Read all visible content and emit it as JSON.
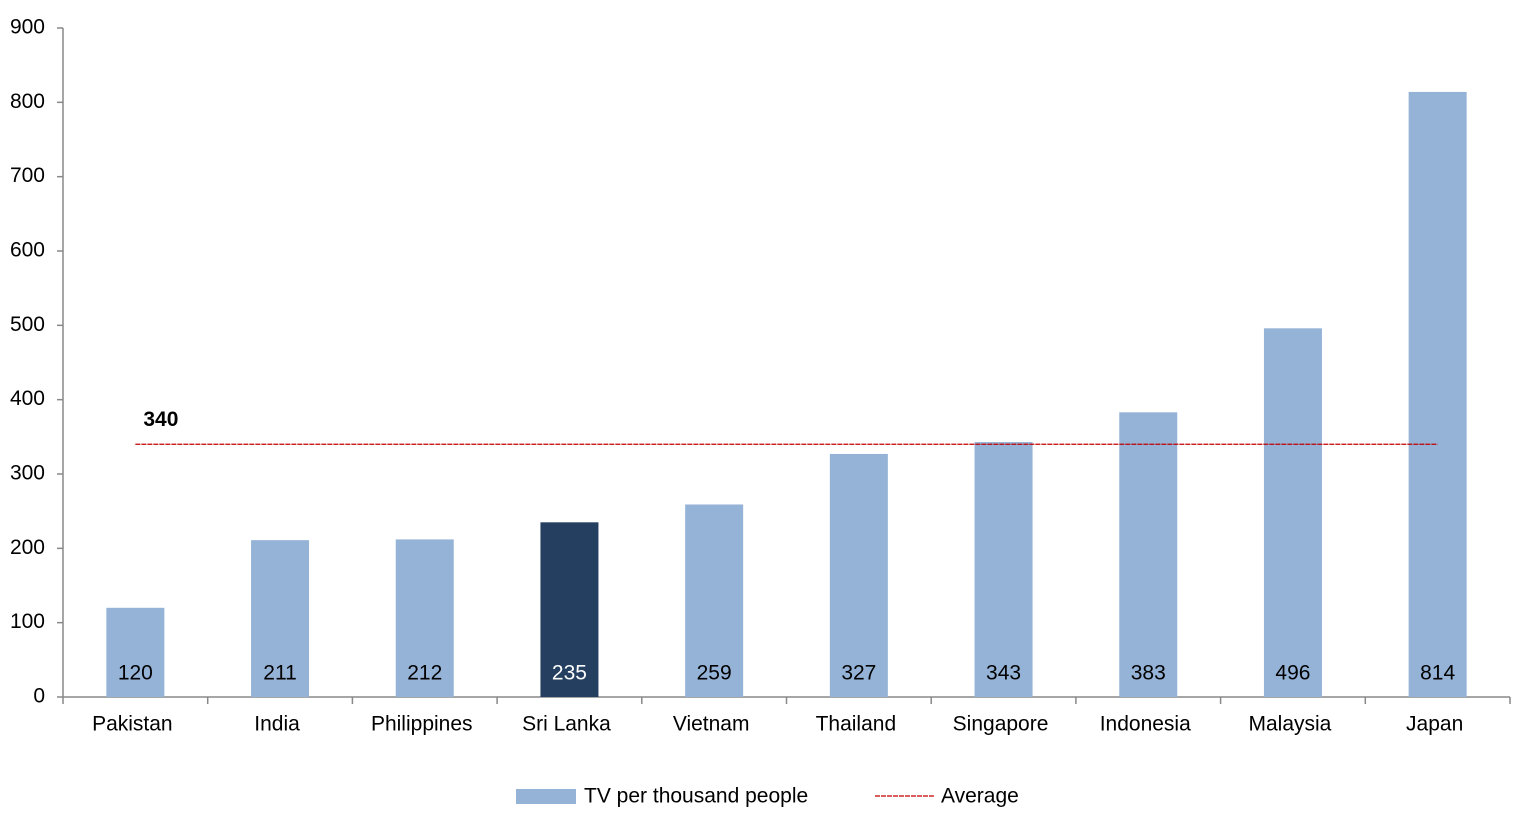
{
  "chart_data": {
    "type": "bar",
    "categories": [
      "Pakistan",
      "India",
      "Philippines",
      "Sri Lanka",
      "Vietnam",
      "Thailand",
      "Singapore",
      "Indonesia",
      "Malaysia",
      "Japan"
    ],
    "series": [
      {
        "name": "TV per thousand people",
        "color": "#95b3d7",
        "values": [
          120,
          211,
          212,
          235,
          259,
          327,
          343,
          383,
          496,
          814
        ],
        "colors": [
          "#95b3d7",
          "#95b3d7",
          "#95b3d7",
          "#243f60",
          "#95b3d7",
          "#95b3d7",
          "#95b3d7",
          "#95b3d7",
          "#95b3d7",
          "#95b3d7"
        ]
      }
    ],
    "average": {
      "name": "Average",
      "value": 340,
      "color": "#c00000"
    },
    "ylim": [
      0,
      900
    ],
    "yticks": [
      0,
      100,
      200,
      300,
      400,
      500,
      600,
      700,
      800,
      900
    ],
    "grid": false
  }
}
